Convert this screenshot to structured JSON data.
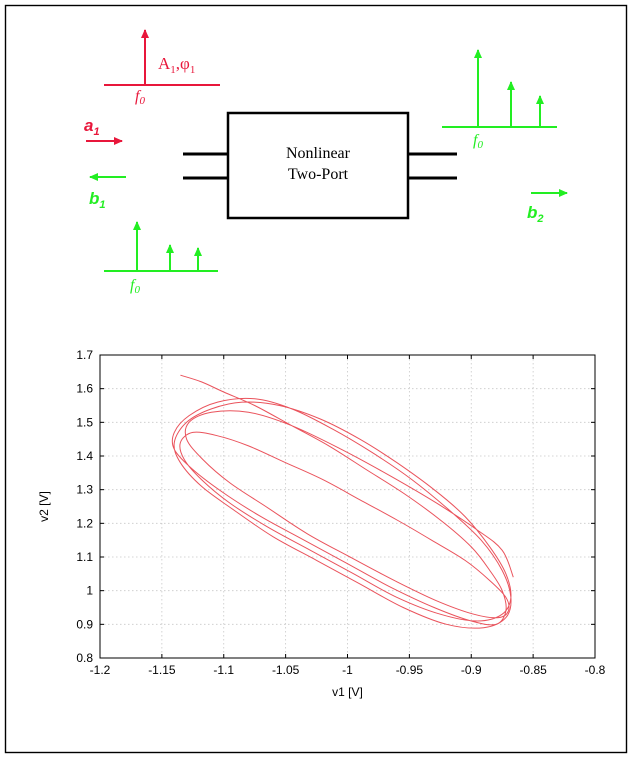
{
  "diagram": {
    "input_label": {
      "amp": "A",
      "amp_sub": "1",
      "sep": ",",
      "phase": "φ",
      "phase_sub": "1"
    },
    "input_freq": "f",
    "input_freq_sub": "0",
    "reflected_freq": "f",
    "reflected_freq_sub": "0",
    "output_freq": "f",
    "output_freq_sub": "0",
    "wave_a1": {
      "base": "a",
      "sub": "1"
    },
    "wave_b1": {
      "base": "b",
      "sub": "1"
    },
    "wave_b2": {
      "base": "b",
      "sub": "2"
    },
    "block_line1": "Nonlinear",
    "block_line2": "Two-Port",
    "colors": {
      "input": "#e8173b",
      "output": "#22ee22",
      "block": "#000000"
    }
  },
  "chart_data": {
    "type": "line",
    "xlabel": "v1 [V]",
    "ylabel": "v2 [V]",
    "xlim": [
      -1.2,
      -0.8
    ],
    "ylim": [
      0.8,
      1.7
    ],
    "xticks": [
      -1.2,
      -1.15,
      -1.1,
      -1.05,
      -1,
      -0.95,
      -0.9,
      -0.85,
      -0.8
    ],
    "xtick_labels": [
      "-1.2",
      "-1.15",
      "-1.1",
      "-1.05",
      "-1",
      "-0.95",
      "-0.9",
      "-0.85",
      "-0.8"
    ],
    "yticks": [
      0.8,
      0.9,
      1,
      1.1,
      1.2,
      1.3,
      1.4,
      1.5,
      1.6,
      1.7
    ],
    "ytick_labels": [
      "0.8",
      "0.9",
      "1",
      "1.1",
      "1.2",
      "1.3",
      "1.4",
      "1.5",
      "1.6",
      "1.7"
    ],
    "grid": true,
    "series_color": "#e8404a",
    "series": [
      {
        "x": [
          -1.135,
          -1.118,
          -1.1,
          -1.075,
          -1.045,
          -1.015,
          -0.985,
          -0.955,
          -0.925,
          -0.9,
          -0.885,
          -0.875,
          -0.872,
          -0.88,
          -0.9,
          -0.93,
          -0.965,
          -1.0,
          -1.035,
          -1.07,
          -1.1,
          -1.125,
          -1.14,
          -1.14,
          -1.128,
          -1.105,
          -1.075,
          -1.045,
          -1.012,
          -0.98,
          -0.948,
          -0.918,
          -0.892,
          -0.875,
          -0.868,
          -0.872,
          -0.89,
          -0.92,
          -0.955,
          -0.99,
          -1.025,
          -1.06,
          -1.092,
          -1.118,
          -1.135,
          -1.14,
          -1.13,
          -1.11,
          -1.085,
          -1.055,
          -1.022,
          -0.99,
          -0.96,
          -0.93,
          -0.905,
          -0.885,
          -0.872,
          -0.868,
          -0.875,
          -0.895,
          -0.925,
          -0.96,
          -0.995,
          -1.03,
          -1.065,
          -1.095,
          -1.118,
          -1.132,
          -1.135,
          -1.125,
          -1.105,
          -1.08,
          -1.05,
          -1.02,
          -0.99,
          -0.96,
          -0.932,
          -0.905,
          -0.885,
          -0.872,
          -0.87,
          -0.878,
          -0.898,
          -0.928,
          -0.962,
          -0.998,
          -1.033,
          -1.066,
          -1.095,
          -1.117,
          -1.13,
          -1.128,
          -1.11,
          -1.08,
          -1.045,
          -1.005,
          -0.965,
          -0.928,
          -0.895,
          -0.875,
          -0.866
        ],
        "y": [
          1.64,
          1.62,
          1.59,
          1.55,
          1.49,
          1.43,
          1.36,
          1.29,
          1.21,
          1.13,
          1.06,
          1.0,
          0.94,
          0.9,
          0.91,
          0.95,
          1.01,
          1.08,
          1.15,
          1.22,
          1.29,
          1.36,
          1.42,
          1.47,
          1.52,
          1.56,
          1.57,
          1.54,
          1.48,
          1.41,
          1.33,
          1.24,
          1.15,
          1.06,
          0.98,
          0.92,
          0.89,
          0.9,
          0.95,
          1.02,
          1.09,
          1.16,
          1.24,
          1.31,
          1.38,
          1.44,
          1.5,
          1.54,
          1.56,
          1.55,
          1.51,
          1.45,
          1.38,
          1.3,
          1.22,
          1.13,
          1.05,
          0.98,
          0.93,
          0.91,
          0.93,
          0.98,
          1.05,
          1.12,
          1.19,
          1.26,
          1.33,
          1.39,
          1.44,
          1.47,
          1.46,
          1.43,
          1.38,
          1.33,
          1.27,
          1.21,
          1.15,
          1.09,
          1.03,
          0.98,
          0.94,
          0.92,
          0.93,
          0.97,
          1.03,
          1.1,
          1.17,
          1.25,
          1.32,
          1.39,
          1.45,
          1.5,
          1.53,
          1.53,
          1.49,
          1.42,
          1.34,
          1.26,
          1.18,
          1.12,
          1.04
        ]
      }
    ]
  }
}
